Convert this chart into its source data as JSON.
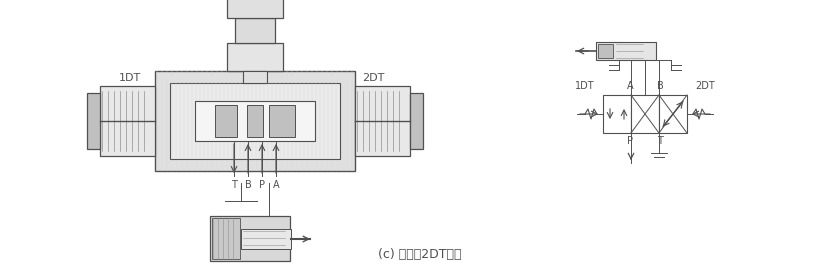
{
  "title": "(c) 电磁钄2DT通电",
  "bg_color": "#ffffff",
  "fig_width": 8.39,
  "fig_height": 2.69,
  "lc": "#505050",
  "lc_light": "#909090",
  "gray_light": "#e0e0e0",
  "gray_mid": "#c0c0c0",
  "gray_dark": "#a0a0a0",
  "label_1DT": "1DT",
  "label_2DT": "2DT",
  "label_T": "T",
  "label_B": "B",
  "label_P": "P",
  "label_A": "A",
  "label_A2": "A",
  "label_B2": "B",
  "label_P2": "P",
  "label_T2": "T",
  "label_1DT2": "1DT",
  "label_2DT2": "2DT"
}
